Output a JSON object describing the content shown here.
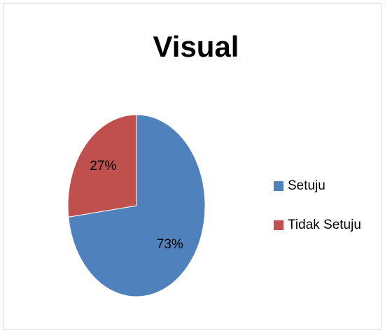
{
  "chart_data": {
    "type": "pie",
    "title": "Visual",
    "categories": [
      "Setuju",
      "Tidak Setuju"
    ],
    "values": [
      73,
      27
    ],
    "value_labels": [
      "73%",
      "27%"
    ],
    "colors": [
      "#4f81bd",
      "#c0504d"
    ],
    "legend": "right"
  }
}
